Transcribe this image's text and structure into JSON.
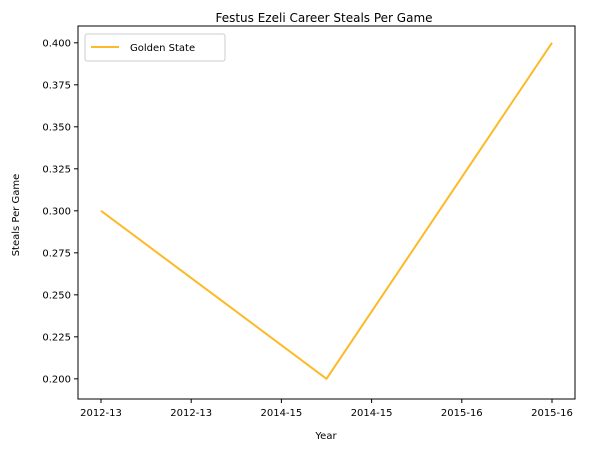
{
  "chart_data": {
    "type": "line",
    "title": "Festus Ezeli Career Steals Per Game",
    "xlabel": "Year",
    "ylabel": "Steals Per Game",
    "x_tick_labels": [
      "2012-13",
      "2012-13",
      "2014-15",
      "2014-15",
      "2015-16",
      "2015-16"
    ],
    "categories": [
      "2012-13",
      "2014-15",
      "2015-16"
    ],
    "series": [
      {
        "name": "Golden State",
        "color": "#fdb927",
        "values": [
          0.3,
          0.2,
          0.4
        ]
      }
    ],
    "ylim": [
      0.188,
      0.41
    ],
    "y_ticks": [
      "0.200",
      "0.225",
      "0.250",
      "0.275",
      "0.300",
      "0.325",
      "0.350",
      "0.375",
      "0.400"
    ],
    "legend_position": "upper-left",
    "grid": false
  }
}
